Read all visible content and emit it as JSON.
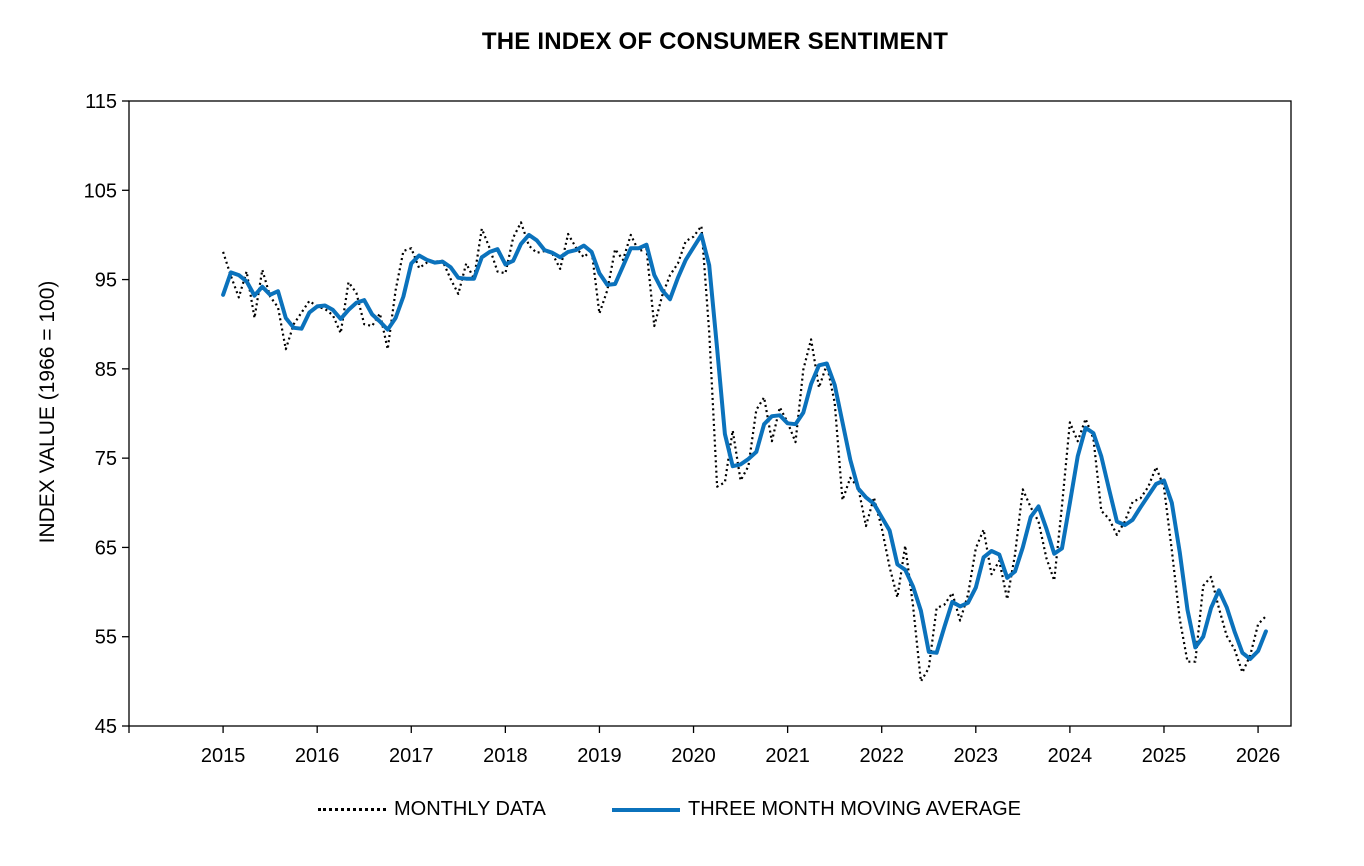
{
  "chart_data": {
    "type": "line",
    "title": "THE INDEX OF CONSUMER SENTIMENT",
    "xlabel": "",
    "ylabel": "INDEX VALUE (1966 = 100)",
    "xlim": [
      2014,
      2026.35
    ],
    "ylim": [
      45,
      115
    ],
    "x_ticks": [
      2015,
      2016,
      2017,
      2018,
      2019,
      2020,
      2021,
      2022,
      2023,
      2024,
      2025,
      2026
    ],
    "y_ticks": [
      45,
      55,
      65,
      75,
      85,
      95,
      105,
      115
    ],
    "grid": false,
    "legend_position": "bottom",
    "colors": {
      "monthly": "#000000",
      "average": "#0b72bc"
    },
    "series": [
      {
        "name": "MONTHLY DATA",
        "style": "dotted",
        "start": "2015-01",
        "frequency": "monthly",
        "values": [
          98.1,
          95.4,
          93.0,
          95.9,
          90.7,
          96.1,
          93.1,
          91.9,
          87.2,
          90.0,
          91.3,
          92.6,
          92.0,
          91.7,
          91.0,
          89.0,
          94.7,
          93.5,
          90.0,
          89.8,
          91.2,
          87.2,
          93.8,
          98.2,
          98.5,
          96.3,
          96.9,
          97.0,
          97.1,
          95.1,
          93.4,
          96.8,
          95.1,
          100.7,
          98.5,
          95.9,
          95.7,
          99.7,
          101.4,
          98.8,
          98.0,
          98.2,
          97.9,
          96.2,
          100.1,
          98.6,
          97.5,
          98.3,
          91.2,
          93.8,
          98.4,
          97.2,
          100.0,
          98.2,
          98.4,
          89.8,
          93.2,
          95.5,
          96.8,
          99.3,
          99.8,
          101.0,
          89.1,
          71.8,
          72.3,
          78.1,
          72.5,
          74.1,
          80.4,
          81.8,
          76.9,
          80.7,
          79.0,
          76.8,
          84.9,
          88.3,
          82.9,
          85.5,
          81.2,
          70.3,
          72.8,
          71.7,
          67.4,
          70.6,
          67.2,
          62.8,
          59.4,
          65.2,
          58.4,
          50.0,
          51.5,
          58.2,
          58.6,
          59.9,
          56.8,
          59.7,
          64.9,
          67.0,
          62.0,
          63.5,
          59.2,
          64.2,
          71.5,
          69.5,
          67.9,
          63.8,
          61.3,
          69.7,
          79.0,
          76.9,
          79.4,
          77.2,
          69.1,
          68.2,
          66.4,
          67.9,
          70.1,
          70.5,
          71.8,
          74.0,
          71.7,
          64.7,
          57.0,
          52.2,
          52.2,
          60.7,
          61.7,
          58.2,
          55.1,
          53.6,
          51.0,
          52.9,
          56.4,
          57.3
        ]
      },
      {
        "name": "THREE MONTH MOVING AVERAGE",
        "style": "solid",
        "start": "2015-01",
        "frequency": "monthly",
        "values": [
          93.3,
          95.8,
          95.5,
          94.8,
          93.2,
          94.2,
          93.3,
          93.7,
          90.7,
          89.6,
          89.5,
          91.3,
          92.0,
          92.1,
          91.6,
          90.6,
          91.6,
          92.4,
          92.7,
          91.1,
          90.3,
          89.4,
          90.7,
          93.1,
          96.8,
          97.7,
          97.2,
          96.9,
          97.0,
          96.4,
          95.2,
          95.1,
          95.1,
          97.5,
          98.1,
          98.4,
          96.7,
          97.1,
          99.0,
          100.0,
          99.4,
          98.3,
          98.0,
          97.5,
          98.1,
          98.3,
          98.8,
          98.1,
          95.7,
          94.4,
          94.5,
          96.5,
          98.5,
          98.5,
          98.9,
          95.5,
          93.8,
          92.8,
          95.2,
          97.2,
          98.6,
          100.0,
          96.6,
          87.3,
          77.7,
          74.1,
          74.3,
          74.9,
          75.7,
          78.8,
          79.7,
          79.8,
          78.9,
          78.8,
          80.1,
          83.3,
          85.4,
          85.6,
          83.2,
          79.0,
          74.8,
          71.6,
          70.6,
          69.9,
          68.4,
          66.9,
          63.1,
          62.5,
          60.6,
          57.9,
          53.3,
          53.2,
          56.1,
          58.9,
          58.4,
          58.8,
          60.5,
          63.9,
          64.6,
          64.2,
          61.6,
          62.3,
          65.0,
          68.4,
          69.6,
          67.1,
          64.3,
          64.9,
          70.0,
          75.2,
          78.4,
          77.8,
          75.2,
          71.5,
          67.9,
          67.5,
          68.1,
          69.5,
          70.8,
          72.1,
          72.5,
          70.0,
          64.5,
          58.0,
          53.8,
          55.0,
          58.2,
          60.2,
          58.3,
          55.6,
          53.2,
          52.5,
          53.4,
          55.6
        ]
      }
    ]
  }
}
